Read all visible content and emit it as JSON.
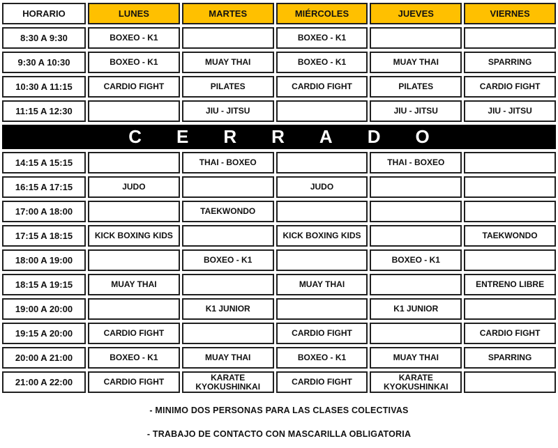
{
  "header": {
    "time_col": "HORARIO",
    "days": [
      "LUNES",
      "MARTES",
      "MIÉRCOLES",
      "JUEVES",
      "VIERNES"
    ]
  },
  "rows": [
    {
      "time": "8:30 A 9:30",
      "cells": [
        {
          "label": "BOXEO - K1",
          "type": "red"
        },
        {
          "label": "",
          "type": "empty"
        },
        {
          "label": "BOXEO - K1",
          "type": "red"
        },
        {
          "label": "",
          "type": "empty"
        },
        {
          "label": "",
          "type": "empty"
        }
      ]
    },
    {
      "time": "9:30 A 10:30",
      "cells": [
        {
          "label": "BOXEO - K1",
          "type": "red"
        },
        {
          "label": "MUAY THAI",
          "type": "red"
        },
        {
          "label": "BOXEO - K1",
          "type": "red"
        },
        {
          "label": "MUAY THAI",
          "type": "red"
        },
        {
          "label": "SPARRING",
          "type": "red"
        }
      ]
    },
    {
      "time": "10:30 A 11:15",
      "cells": [
        {
          "label": "CARDIO FIGHT",
          "type": "peach"
        },
        {
          "label": "PILATES",
          "type": "orange"
        },
        {
          "label": "CARDIO FIGHT",
          "type": "peach"
        },
        {
          "label": "PILATES",
          "type": "orange"
        },
        {
          "label": "CARDIO FIGHT",
          "type": "peach"
        }
      ]
    },
    {
      "time": "11:15 A 12:30",
      "cells": [
        {
          "label": "",
          "type": "empty"
        },
        {
          "label": "JIU - JITSU",
          "type": "blue"
        },
        {
          "label": "",
          "type": "empty"
        },
        {
          "label": "JIU - JITSU",
          "type": "blue"
        },
        {
          "label": "JIU - JITSU",
          "type": "blue"
        }
      ]
    },
    {
      "type": "closed",
      "label": "CERRADO"
    },
    {
      "time": "14:15 A 15:15",
      "cells": [
        {
          "label": "",
          "type": "empty"
        },
        {
          "label": "THAI - BOXEO",
          "type": "red"
        },
        {
          "label": "",
          "type": "empty"
        },
        {
          "label": "THAI - BOXEO",
          "type": "red"
        },
        {
          "label": "",
          "type": "empty"
        }
      ]
    },
    {
      "time": "16:15 A 17:15",
      "cells": [
        {
          "label": "JUDO",
          "type": "salmon"
        },
        {
          "label": "",
          "type": "empty"
        },
        {
          "label": "JUDO",
          "type": "salmon"
        },
        {
          "label": "",
          "type": "empty"
        },
        {
          "label": "",
          "type": "empty"
        }
      ]
    },
    {
      "time": "17:00 A 18:00",
      "cells": [
        {
          "label": "",
          "type": "empty"
        },
        {
          "label": "TAEKWONDO",
          "type": "green"
        },
        {
          "label": "",
          "type": "empty"
        },
        {
          "label": "",
          "type": "empty"
        },
        {
          "label": "",
          "type": "empty"
        }
      ]
    },
    {
      "time": "17:15 A 18:15",
      "cells": [
        {
          "label": "KICK BOXING KIDS",
          "type": "paleblue"
        },
        {
          "label": "",
          "type": "empty"
        },
        {
          "label": "KICK BOXING KIDS",
          "type": "paleblue"
        },
        {
          "label": "",
          "type": "empty"
        },
        {
          "label": "TAEKWONDO",
          "type": "green"
        }
      ]
    },
    {
      "time": "18:00 A 19:00",
      "cells": [
        {
          "label": "",
          "type": "empty"
        },
        {
          "label": "BOXEO - K1",
          "type": "red"
        },
        {
          "label": "",
          "type": "empty"
        },
        {
          "label": "BOXEO - K1",
          "type": "red"
        },
        {
          "label": "",
          "type": "empty"
        }
      ]
    },
    {
      "time": "18:15 A 19:15",
      "cells": [
        {
          "label": "MUAY THAI",
          "type": "red"
        },
        {
          "label": "",
          "type": "empty"
        },
        {
          "label": "MUAY THAI",
          "type": "red"
        },
        {
          "label": "",
          "type": "empty"
        },
        {
          "label": "ENTRENO LIBRE",
          "type": "yellow"
        }
      ]
    },
    {
      "time": "19:00 A 20:00",
      "cells": [
        {
          "label": "",
          "type": "empty"
        },
        {
          "label": "K1 JUNIOR",
          "type": "medblue"
        },
        {
          "label": "",
          "type": "empty"
        },
        {
          "label": "K1 JUNIOR",
          "type": "medblue"
        },
        {
          "label": "",
          "type": "empty"
        }
      ]
    },
    {
      "time": "19:15 A 20:00",
      "cells": [
        {
          "label": "CARDIO FIGHT",
          "type": "peach"
        },
        {
          "label": "",
          "type": "empty"
        },
        {
          "label": "CARDIO FIGHT",
          "type": "peach"
        },
        {
          "label": "",
          "type": "empty"
        },
        {
          "label": "CARDIO FIGHT",
          "type": "peach"
        }
      ]
    },
    {
      "time": "20:00 A 21:00",
      "cells": [
        {
          "label": "BOXEO - K1",
          "type": "red"
        },
        {
          "label": "MUAY THAI",
          "type": "red"
        },
        {
          "label": "BOXEO - K1",
          "type": "red"
        },
        {
          "label": "MUAY THAI",
          "type": "red"
        },
        {
          "label": "SPARRING",
          "type": "red"
        }
      ]
    },
    {
      "time": "21:00 A 22:00",
      "cells": [
        {
          "label": "CARDIO FIGHT",
          "type": "peach"
        },
        {
          "label": "KARATE KYOKUSHINKAI",
          "type": "gray"
        },
        {
          "label": "CARDIO FIGHT",
          "type": "peach"
        },
        {
          "label": "KARATE KYOKUSHINKAI",
          "type": "gray"
        },
        {
          "label": "",
          "type": "empty"
        }
      ]
    }
  ],
  "notes": [
    "- MINIMO DOS PERSONAS PARA LAS CLASES COLECTIVAS",
    "- TRABAJO DE CONTACTO CON MASCARILLA OBLIGATORIA"
  ],
  "colors": {
    "header_day": "#FFC000",
    "red_class": "#FE0000",
    "red_text": "#6E0404",
    "cardio_peach": "#FBE5D6",
    "pilates_orange": "#ED7D31",
    "jiujitsu_blue": "#00B0F0",
    "jiujitsu_text": "#17365D",
    "judo_salmon": "#F4B183",
    "taekwondo_green": "#A9D08E",
    "kickboxing_paleblue": "#DEEBF7",
    "k1junior_blue": "#9DC3E6",
    "entreno_yellow": "#FFFF00",
    "karate_gray": "#D9D9D9",
    "closed_band": "#000000",
    "closed_text": "#FFFFFF",
    "border": "#1F1F1F"
  }
}
